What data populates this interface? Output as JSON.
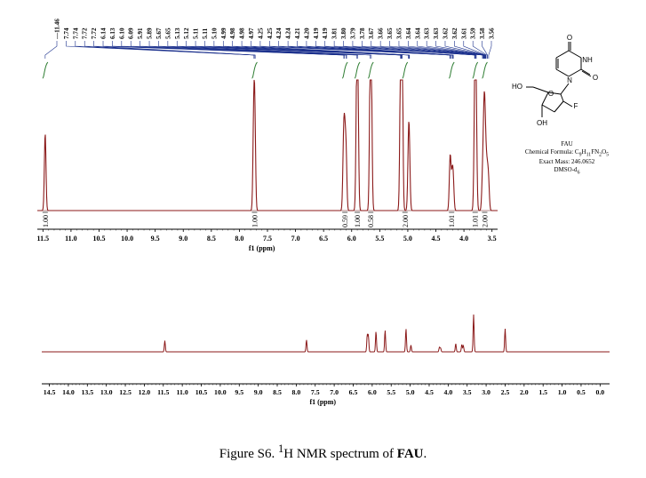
{
  "chart_data": [
    {
      "type": "line",
      "subtype": "nmr-spectrum-expanded",
      "xlabel": "f1 (ppm)",
      "x_ticks": [
        "11.5",
        "11.0",
        "10.5",
        "10.0",
        "9.5",
        "9.0",
        "8.5",
        "8.0",
        "7.5",
        "7.0",
        "6.5",
        "6.0",
        "5.5",
        "5.0",
        "4.5",
        "4.0",
        "3.5"
      ],
      "xlim": [
        11.6,
        3.4
      ],
      "peak_labels": [
        "11.46",
        "7.74",
        "7.74",
        "7.72",
        "7.72",
        "6.14",
        "6.13",
        "6.10",
        "6.09",
        "5.91",
        "5.89",
        "5.67",
        "5.65",
        "5.13",
        "5.12",
        "5.11",
        "5.11",
        "5.10",
        "4.99",
        "4.98",
        "4.98",
        "4.97",
        "4.25",
        "4.25",
        "4.24",
        "4.24",
        "4.21",
        "4.20",
        "4.19",
        "4.19",
        "3.81",
        "3.80",
        "3.79",
        "3.78",
        "3.67",
        "3.66",
        "3.65",
        "3.65",
        "3.64",
        "3.64",
        "3.63",
        "3.63",
        "3.62",
        "3.62",
        "3.61",
        "3.59",
        "3.58",
        "3.56"
      ],
      "integrals": [
        {
          "ppm": 11.46,
          "value": "1.00"
        },
        {
          "ppm": 7.73,
          "value": "1.00"
        },
        {
          "ppm": 6.12,
          "value": "0.59"
        },
        {
          "ppm": 5.9,
          "value": "1.00"
        },
        {
          "ppm": 5.66,
          "value": "0.58"
        },
        {
          "ppm": 5.05,
          "value": "2.00"
        },
        {
          "ppm": 4.22,
          "value": "1.01"
        },
        {
          "ppm": 3.8,
          "value": "1.01"
        },
        {
          "ppm": 3.63,
          "value": "2.00"
        }
      ],
      "peaks": [
        {
          "ppm": 11.46,
          "height": 0.62
        },
        {
          "ppm": 7.745,
          "height": 0.68
        },
        {
          "ppm": 7.725,
          "height": 0.68
        },
        {
          "ppm": 6.145,
          "height": 0.46
        },
        {
          "ppm": 6.125,
          "height": 0.5
        },
        {
          "ppm": 6.1,
          "height": 0.46
        },
        {
          "ppm": 5.91,
          "height": 0.95
        },
        {
          "ppm": 5.89,
          "height": 0.92
        },
        {
          "ppm": 5.67,
          "height": 1.0
        },
        {
          "ppm": 5.65,
          "height": 1.0
        },
        {
          "ppm": 5.13,
          "height": 0.95
        },
        {
          "ppm": 5.11,
          "height": 0.98
        },
        {
          "ppm": 5.1,
          "height": 0.9
        },
        {
          "ppm": 4.99,
          "height": 0.28
        },
        {
          "ppm": 4.98,
          "height": 0.3
        },
        {
          "ppm": 4.97,
          "height": 0.26
        },
        {
          "ppm": 4.25,
          "height": 0.22
        },
        {
          "ppm": 4.24,
          "height": 0.25
        },
        {
          "ppm": 4.21,
          "height": 0.24
        },
        {
          "ppm": 4.19,
          "height": 0.22
        },
        {
          "ppm": 3.81,
          "height": 0.48
        },
        {
          "ppm": 3.8,
          "height": 0.52
        },
        {
          "ppm": 3.79,
          "height": 0.5
        },
        {
          "ppm": 3.78,
          "height": 0.44
        },
        {
          "ppm": 3.67,
          "height": 0.22
        },
        {
          "ppm": 3.65,
          "height": 0.3
        },
        {
          "ppm": 3.64,
          "height": 0.34
        },
        {
          "ppm": 3.63,
          "height": 0.28
        },
        {
          "ppm": 3.62,
          "height": 0.32
        },
        {
          "ppm": 3.6,
          "height": 0.26
        },
        {
          "ppm": 3.58,
          "height": 0.22
        },
        {
          "ppm": 3.56,
          "height": 0.2
        }
      ]
    },
    {
      "type": "line",
      "subtype": "nmr-spectrum-full",
      "xlabel": "f1 (ppm)",
      "x_ticks": [
        "14.5",
        "14.0",
        "13.5",
        "13.0",
        "12.5",
        "12.0",
        "11.5",
        "11.0",
        "10.5",
        "10.0",
        "9.5",
        "9.0",
        "8.5",
        "8.0",
        "7.5",
        "7.0",
        "6.5",
        "6.0",
        "5.5",
        "5.0",
        "4.5",
        "4.0",
        "3.5",
        "3.0",
        "2.5",
        "2.0",
        "1.5",
        "1.0",
        "0.5",
        "0.0"
      ],
      "xlim": [
        14.7,
        -0.25
      ],
      "peaks": [
        {
          "ppm": 11.46,
          "height": 0.3
        },
        {
          "ppm": 7.73,
          "height": 0.32
        },
        {
          "ppm": 6.13,
          "height": 0.45
        },
        {
          "ppm": 6.1,
          "height": 0.42
        },
        {
          "ppm": 5.9,
          "height": 0.55
        },
        {
          "ppm": 5.66,
          "height": 0.58
        },
        {
          "ppm": 5.11,
          "height": 0.62
        },
        {
          "ppm": 4.98,
          "height": 0.18
        },
        {
          "ppm": 4.23,
          "height": 0.12
        },
        {
          "ppm": 4.2,
          "height": 0.1
        },
        {
          "ppm": 3.8,
          "height": 0.22
        },
        {
          "ppm": 3.64,
          "height": 0.2
        },
        {
          "ppm": 3.6,
          "height": 0.16
        },
        {
          "ppm": 3.33,
          "height": 1.0
        },
        {
          "ppm": 2.5,
          "height": 0.62
        }
      ]
    }
  ],
  "molecule": {
    "atom_labels": [
      "NH",
      "O",
      "N",
      "O",
      "HO",
      "O",
      "F",
      "OH"
    ],
    "name": "FAU",
    "formula_prefix": "Chemical Formula: C",
    "formula_parts": [
      {
        "t": "9",
        "sub": true
      },
      {
        "t": "H",
        "sub": false
      },
      {
        "t": "11",
        "sub": true
      },
      {
        "t": "FN",
        "sub": false
      },
      {
        "t": "2",
        "sub": true
      },
      {
        "t": "O",
        "sub": false
      },
      {
        "t": "5",
        "sub": true
      }
    ],
    "exact_mass": "Exact Mass: 246.0652",
    "solvent": "DMSO-d",
    "solvent_sub": "6"
  },
  "caption": {
    "prefix": "Figure S6. ",
    "sup": "1",
    "middle": "H NMR spectrum of ",
    "bold": "FAU",
    "suffix": "."
  },
  "colors": {
    "spectrum": "#8b1a1a",
    "integral": "#2e7d32",
    "peak_label": "#1a2f8c",
    "axis": "#000000"
  }
}
